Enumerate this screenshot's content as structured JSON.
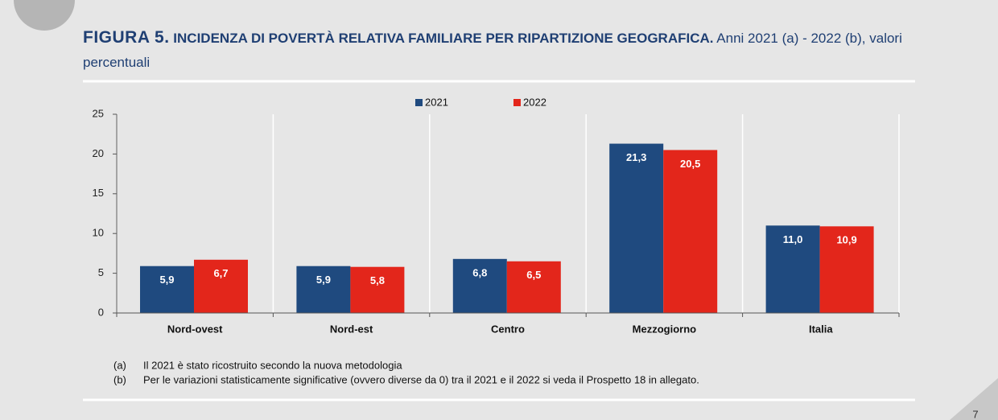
{
  "chart_data": {
    "type": "bar",
    "figure_label": "FIGURA 5.",
    "title": "INCIDENZA DI POVERTÀ RELATIVA FAMILIARE PER RIPARTIZIONE GEOGRAFICA.",
    "subtitle": "Anni 2021 (a) - 2022 (b), valori percentuali",
    "categories": [
      "Nord-ovest",
      "Nord-est",
      "Centro",
      "Mezzogiorno",
      "Italia"
    ],
    "series": [
      {
        "name": "2021",
        "color": "#1f4a7f",
        "values": [
          5.9,
          5.9,
          6.8,
          21.3,
          11.0
        ],
        "value_labels": [
          "5,9",
          "5,9",
          "6,8",
          "21,3",
          "11,0"
        ]
      },
      {
        "name": "2022",
        "color": "#e3261b",
        "values": [
          6.7,
          5.8,
          6.5,
          20.5,
          10.9
        ],
        "value_labels": [
          "6,7",
          "5,8",
          "6,5",
          "20,5",
          "10,9"
        ]
      }
    ],
    "ylim": [
      0,
      25
    ],
    "yticks": [
      0,
      5,
      10,
      15,
      20,
      25
    ],
    "legend": "top"
  },
  "notes": [
    {
      "marker": "(a)",
      "text": "Il 2021 è stato ricostruito secondo la nuova metodologia"
    },
    {
      "marker": "(b)",
      "text": "Per le variazioni statisticamente significative (ovvero diverse da 0) tra il 2021 e il 2022 si veda il Prospetto 18 in allegato."
    }
  ],
  "page_number": "7"
}
